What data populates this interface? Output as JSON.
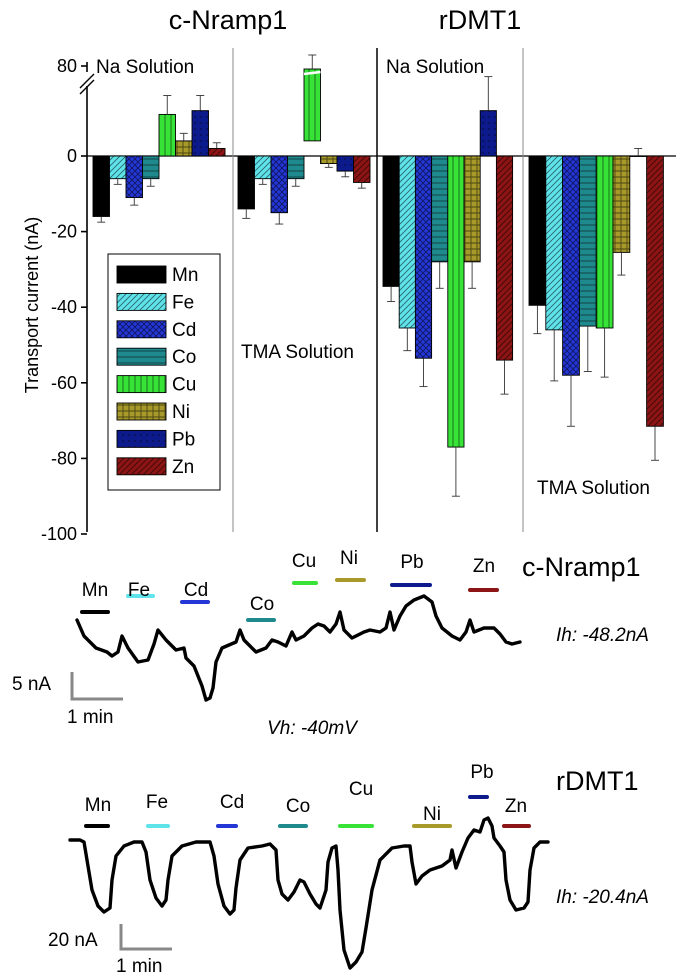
{
  "chart_data": {
    "type": "bar",
    "title_left": "c-Nramp1",
    "title_right": "rDMT1",
    "ylabel": "Transport current (nA)",
    "ylim": [
      -100,
      20
    ],
    "axis_break": true,
    "y_ticks": [
      -100,
      -80,
      -60,
      -40,
      -20,
      0
    ],
    "y_tick_labels": [
      "-100",
      "-80",
      "-60",
      "-40",
      "-20",
      "0"
    ],
    "break_tick_label": "80",
    "legend_placement": "left, inside plot",
    "metals": [
      "Mn",
      "Fe",
      "Cd",
      "Co",
      "Cu",
      "Ni",
      "Pb",
      "Zn"
    ],
    "series_style": [
      {
        "name": "Mn",
        "color": "#000000",
        "pattern": "solid"
      },
      {
        "name": "Fe",
        "color": "#5fe3ea",
        "pattern": "diagonal"
      },
      {
        "name": "Cd",
        "color": "#2436d6",
        "pattern": "crosshatch"
      },
      {
        "name": "Co",
        "color": "#1f8a8e",
        "pattern": "horizontal"
      },
      {
        "name": "Cu",
        "color": "#36e336",
        "pattern": "vertical"
      },
      {
        "name": "Ni",
        "color": "#a79a2a",
        "pattern": "grid"
      },
      {
        "name": "Pb",
        "color": "#0d1a8c",
        "pattern": "dots"
      },
      {
        "name": "Zn",
        "color": "#8c1414",
        "pattern": "diagonal"
      }
    ],
    "groups": [
      {
        "transporter": "c-Nramp1",
        "solution": "Na Solution",
        "solution_position": "top",
        "values": [
          -16,
          -6,
          -11,
          -6,
          11,
          4,
          12,
          2
        ],
        "errors": [
          1.5,
          1.5,
          2,
          2,
          5,
          2,
          4,
          1.5
        ],
        "broken_value": null
      },
      {
        "transporter": "c-Nramp1",
        "solution": "TMA Solution",
        "solution_position": "middle",
        "values": [
          -14,
          -6,
          -15,
          -6,
          80,
          -2,
          -4,
          -7
        ],
        "errors": [
          2.5,
          1.5,
          3,
          2,
          4,
          1,
          1.5,
          1.5
        ],
        "broken_value": 4
      },
      {
        "transporter": "rDMT1",
        "solution": "Na Solution",
        "solution_position": "top",
        "values": [
          -34.5,
          -45.5,
          -53.5,
          -28,
          -77,
          -28,
          12,
          -54
        ],
        "errors": [
          4,
          6,
          7.5,
          7,
          13,
          7,
          9,
          9
        ],
        "broken_value": null
      },
      {
        "transporter": "rDMT1",
        "solution": "TMA Solution",
        "solution_position": "bottom",
        "values": [
          -39.5,
          -46,
          -58,
          -45,
          -45.5,
          -25.5,
          0,
          -71.5
        ],
        "errors": [
          7.5,
          13.5,
          13.5,
          12,
          13,
          6,
          2,
          9
        ],
        "broken_value": null
      }
    ]
  },
  "traces": [
    {
      "cell": "c-Nramp1",
      "holding_current": "Ih: -48.2nA",
      "scale_y": "5 nA",
      "scale_x": "1 min",
      "pulses": [
        {
          "metal": "Mn",
          "color": "#000000"
        },
        {
          "metal": "Fe",
          "color": "#5fe3ea"
        },
        {
          "metal": "Cd",
          "color": "#2436d6"
        },
        {
          "metal": "Co",
          "color": "#1f8a8e"
        },
        {
          "metal": "Cu",
          "color": "#36e336"
        },
        {
          "metal": "Ni",
          "color": "#a79a2a"
        },
        {
          "metal": "Pb",
          "color": "#0d1a8c"
        },
        {
          "metal": "Zn",
          "color": "#8c1414"
        }
      ]
    },
    {
      "cell": "rDMT1",
      "holding_current": "Ih: -20.4nA",
      "scale_y": "20 nA",
      "scale_x": "1 min",
      "pulses": [
        {
          "metal": "Mn",
          "color": "#000000"
        },
        {
          "metal": "Fe",
          "color": "#5fe3ea"
        },
        {
          "metal": "Cd",
          "color": "#2436d6"
        },
        {
          "metal": "Co",
          "color": "#1f8a8e"
        },
        {
          "metal": "Cu",
          "color": "#36e336"
        },
        {
          "metal": "Ni",
          "color": "#a79a2a"
        },
        {
          "metal": "Pb",
          "color": "#0d1a8c"
        },
        {
          "metal": "Zn",
          "color": "#8c1414"
        }
      ]
    }
  ],
  "holding_voltage": "Vh: -40mV"
}
